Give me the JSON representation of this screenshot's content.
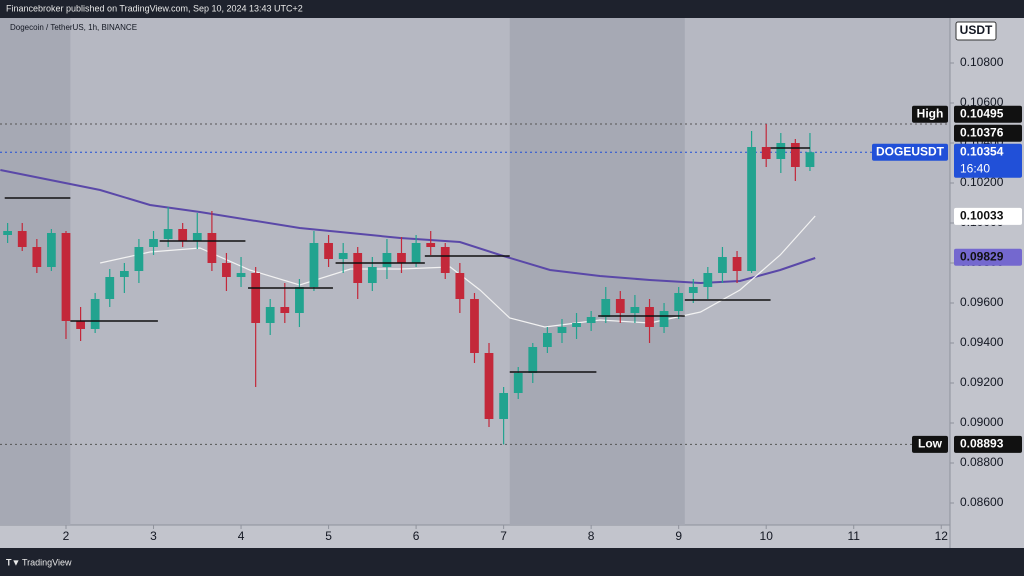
{
  "header": {
    "publisher_line": "Financebroker published on TradingView.com, Sep 10, 2024 13:43 UTC+2",
    "footer": "TradingView"
  },
  "chart_data": {
    "type": "candlestick",
    "title": "Dogecoin / TetherUS, 1h, BINANCE",
    "currency": "USDT",
    "up_color": "#22a38f",
    "down_color": "#c3283a",
    "xlim": [
      1.246,
      12.1
    ],
    "xticks": [
      2,
      3,
      4,
      5,
      6,
      7,
      8,
      9,
      10,
      11,
      12
    ],
    "ylim": [
      0.0849,
      0.11025
    ],
    "yticks": [
      {
        "value": 0.086,
        "label": "0.08600"
      },
      {
        "value": 0.088,
        "label": "0.08800"
      },
      {
        "value": 0.09,
        "label": "0.09000"
      },
      {
        "value": 0.092,
        "label": "0.09200"
      },
      {
        "value": 0.094,
        "label": "0.09400"
      },
      {
        "value": 0.096,
        "label": "0.09600"
      },
      {
        "value": 0.098,
        "label": "0.09800"
      },
      {
        "value": 0.1,
        "label": "0.10000"
      },
      {
        "value": 0.102,
        "label": "0.10200"
      },
      {
        "value": 0.104,
        "label": "0.10400"
      },
      {
        "value": 0.106,
        "label": "0.10600"
      },
      {
        "value": 0.108,
        "label": "0.10800"
      }
    ],
    "grid": false,
    "shaded_ranges": [
      [
        1.246,
        2.05
      ],
      [
        7.07,
        9.07
      ]
    ],
    "x": [
      1.333,
      1.5,
      1.667,
      1.833,
      2.0,
      2.167,
      2.333,
      2.5,
      2.667,
      2.833,
      3.0,
      3.167,
      3.333,
      3.5,
      3.667,
      3.833,
      4.0,
      4.167,
      4.333,
      4.5,
      4.667,
      4.833,
      5.0,
      5.167,
      5.333,
      5.5,
      5.667,
      5.833,
      6.0,
      6.167,
      6.333,
      6.5,
      6.667,
      6.833,
      7.0,
      7.167,
      7.333,
      7.5,
      7.667,
      7.833,
      8.0,
      8.167,
      8.333,
      8.5,
      8.667,
      8.833,
      9.0,
      9.167,
      9.333,
      9.5,
      9.667,
      9.833,
      10.0,
      10.167,
      10.333,
      10.5
    ],
    "open": [
      0.0994,
      0.0996,
      0.0988,
      0.0978,
      0.0995,
      0.0951,
      0.0947,
      0.0962,
      0.0973,
      0.0976,
      0.0988,
      0.0992,
      0.0997,
      0.0991,
      0.0995,
      0.098,
      0.0973,
      0.0975,
      0.095,
      0.0958,
      0.0955,
      0.0968,
      0.099,
      0.0982,
      0.0985,
      0.097,
      0.0978,
      0.0985,
      0.098,
      0.099,
      0.0988,
      0.0975,
      0.0962,
      0.0935,
      0.0902,
      0.0915,
      0.0925,
      0.0938,
      0.0945,
      0.0948,
      0.095,
      0.0953,
      0.0962,
      0.0955,
      0.0958,
      0.0948,
      0.0956,
      0.0965,
      0.0968,
      0.0975,
      0.0983,
      0.0976,
      0.1038,
      0.1032,
      0.104,
      0.1028
    ],
    "high": [
      0.1,
      0.1,
      0.0992,
      0.0997,
      0.0996,
      0.0958,
      0.0965,
      0.0977,
      0.098,
      0.0992,
      0.0996,
      0.1008,
      0.1,
      0.1005,
      0.1006,
      0.0985,
      0.0983,
      0.0978,
      0.0962,
      0.097,
      0.0972,
      0.0996,
      0.0994,
      0.099,
      0.0988,
      0.0983,
      0.0992,
      0.0993,
      0.0994,
      0.0996,
      0.099,
      0.098,
      0.0965,
      0.094,
      0.0918,
      0.0928,
      0.094,
      0.0948,
      0.0952,
      0.0955,
      0.0956,
      0.0968,
      0.0966,
      0.0964,
      0.0962,
      0.096,
      0.0968,
      0.0972,
      0.0978,
      0.0988,
      0.0986,
      0.1046,
      0.10495,
      0.1045,
      0.1042,
      0.1045
    ],
    "low": [
      0.099,
      0.0986,
      0.0975,
      0.0976,
      0.0942,
      0.0941,
      0.0945,
      0.0958,
      0.0965,
      0.097,
      0.0984,
      0.0988,
      0.0988,
      0.0987,
      0.0976,
      0.0966,
      0.0968,
      0.0918,
      0.0944,
      0.095,
      0.0948,
      0.0966,
      0.0978,
      0.0975,
      0.0962,
      0.0966,
      0.0972,
      0.0975,
      0.0978,
      0.0984,
      0.0972,
      0.0955,
      0.093,
      0.0898,
      0.08893,
      0.0912,
      0.092,
      0.0935,
      0.094,
      0.0942,
      0.0946,
      0.095,
      0.095,
      0.095,
      0.094,
      0.0945,
      0.0952,
      0.096,
      0.0962,
      0.097,
      0.097,
      0.0975,
      0.1028,
      0.1025,
      0.1021,
      0.1026
    ],
    "close": [
      0.0996,
      0.0988,
      0.0978,
      0.0995,
      0.0951,
      0.0947,
      0.0962,
      0.0973,
      0.0976,
      0.0988,
      0.0992,
      0.0997,
      0.0991,
      0.0995,
      0.098,
      0.0973,
      0.0975,
      0.095,
      0.0958,
      0.0955,
      0.0968,
      0.099,
      0.0982,
      0.0985,
      0.097,
      0.0978,
      0.0985,
      0.098,
      0.099,
      0.0988,
      0.0975,
      0.0962,
      0.0935,
      0.0902,
      0.0915,
      0.0925,
      0.0938,
      0.0945,
      0.0948,
      0.095,
      0.0953,
      0.0962,
      0.0955,
      0.0958,
      0.0948,
      0.0956,
      0.0965,
      0.0968,
      0.0975,
      0.0983,
      0.0976,
      0.1038,
      0.1032,
      0.104,
      0.1028,
      0.10354
    ],
    "ma_slow": {
      "color": "#5a48a8",
      "badge_color": "#7468cf",
      "last": 0.09829,
      "x": [
        1.25,
        2.39,
        2.96,
        3.53,
        4.67,
        5.82,
        6.5,
        6.96,
        7.53,
        8.1,
        8.67,
        9.25,
        9.7,
        10.16,
        10.56
      ],
      "values": [
        0.10265,
        0.10165,
        0.1009,
        0.10055,
        0.09975,
        0.09925,
        0.09905,
        0.0984,
        0.09765,
        0.09735,
        0.09715,
        0.097,
        0.0971,
        0.09765,
        0.09825
      ]
    },
    "ma_fast": {
      "color": "#f2f2f2",
      "badge_color": "#ffffff",
      "last": 0.10033,
      "x": [
        2.39,
        2.96,
        3.53,
        4.1,
        4.67,
        5.25,
        5.82,
        6.39,
        6.73,
        7.07,
        7.47,
        8.1,
        8.67,
        9.25,
        9.7,
        10.16,
        10.56
      ],
      "values": [
        0.098,
        0.09855,
        0.09875,
        0.09765,
        0.0969,
        0.0977,
        0.0977,
        0.0978,
        0.09665,
        0.09525,
        0.0948,
        0.09515,
        0.095,
        0.09555,
        0.09665,
        0.0984,
        0.10035
      ]
    },
    "levels": [
      {
        "x": [
          1.3,
          2.05
        ],
        "y": 0.10125
      },
      {
        "x": [
          2.05,
          3.05
        ],
        "y": 0.0951
      },
      {
        "x": [
          3.07,
          4.05
        ],
        "y": 0.0991
      },
      {
        "x": [
          4.08,
          5.05
        ],
        "y": 0.09675
      },
      {
        "x": [
          5.08,
          6.1
        ],
        "y": 0.098
      },
      {
        "x": [
          6.1,
          7.07
        ],
        "y": 0.09835
      },
      {
        "x": [
          7.07,
          8.06
        ],
        "y": 0.09255
      },
      {
        "x": [
          8.08,
          9.07
        ],
        "y": 0.09535
      },
      {
        "x": [
          9.07,
          10.05
        ],
        "y": 0.09615
      },
      {
        "x": [
          10.05,
          10.5
        ],
        "y": 0.10375
      }
    ],
    "high_mark": {
      "label": "High",
      "value": 0.10495
    },
    "low_mark": {
      "label": "Low",
      "value": 0.08893
    },
    "prev_close": 0.10376,
    "last": {
      "symbol": "DOGEUSDT",
      "value": 0.10354,
      "countdown": "16:40",
      "color": "#2150d8"
    }
  }
}
